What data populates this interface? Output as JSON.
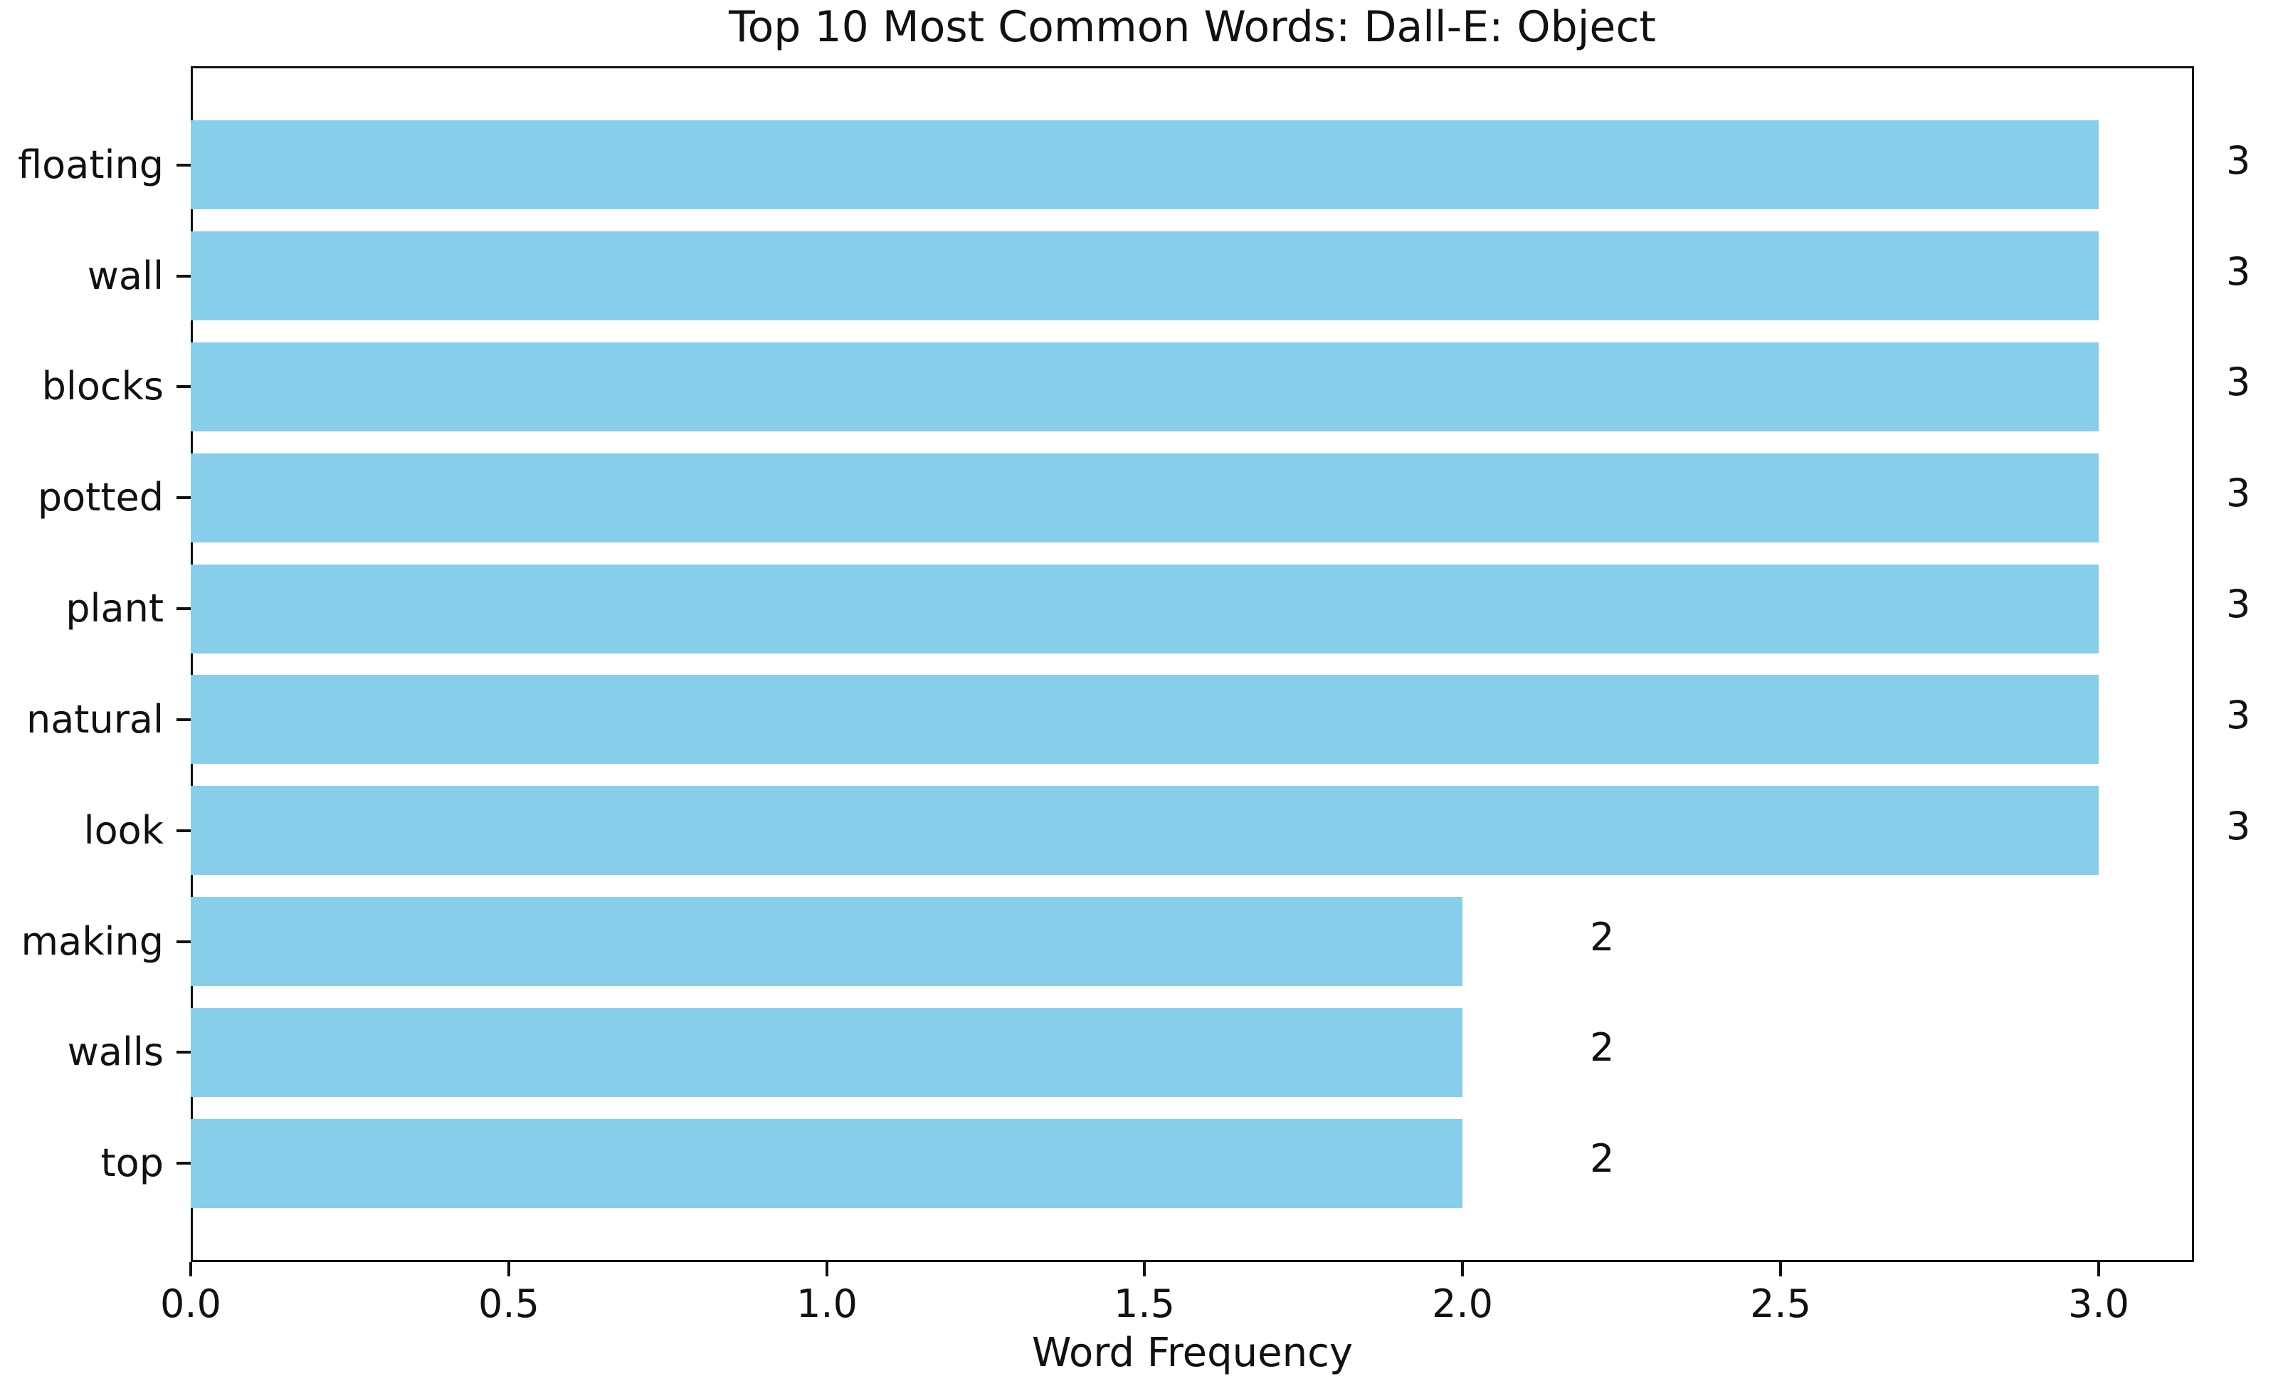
{
  "chart_data": {
    "type": "bar",
    "orientation": "horizontal",
    "title": "Top 10 Most Common Words: Dall-E: Object",
    "xlabel": "Word Frequency",
    "ylabel": "",
    "categories": [
      "floating",
      "wall",
      "blocks",
      "potted",
      "plant",
      "natural",
      "look",
      "making",
      "walls",
      "top"
    ],
    "values": [
      3,
      3,
      3,
      3,
      3,
      3,
      3,
      2,
      2,
      2
    ],
    "bar_value_labels": [
      "3",
      "3",
      "3",
      "3",
      "3",
      "3",
      "3",
      "2",
      "2",
      "2"
    ],
    "value_label_offset": 0.2,
    "x_ticks": [
      {
        "value": 0.0,
        "label": "0.0"
      },
      {
        "value": 0.5,
        "label": "0.5"
      },
      {
        "value": 1.0,
        "label": "1.0"
      },
      {
        "value": 1.5,
        "label": "1.5"
      },
      {
        "value": 2.0,
        "label": "2.0"
      },
      {
        "value": 2.5,
        "label": "2.5"
      },
      {
        "value": 3.0,
        "label": "3.0"
      }
    ],
    "xlim": [
      0,
      3.15
    ],
    "ylim_slots": [
      -0.89,
      9.89
    ],
    "grid": false,
    "legend": "none",
    "bar_color": "#87CEEB",
    "spine_color": "#121212",
    "text_color": "#111111",
    "background_color": "#FFFFFF"
  }
}
